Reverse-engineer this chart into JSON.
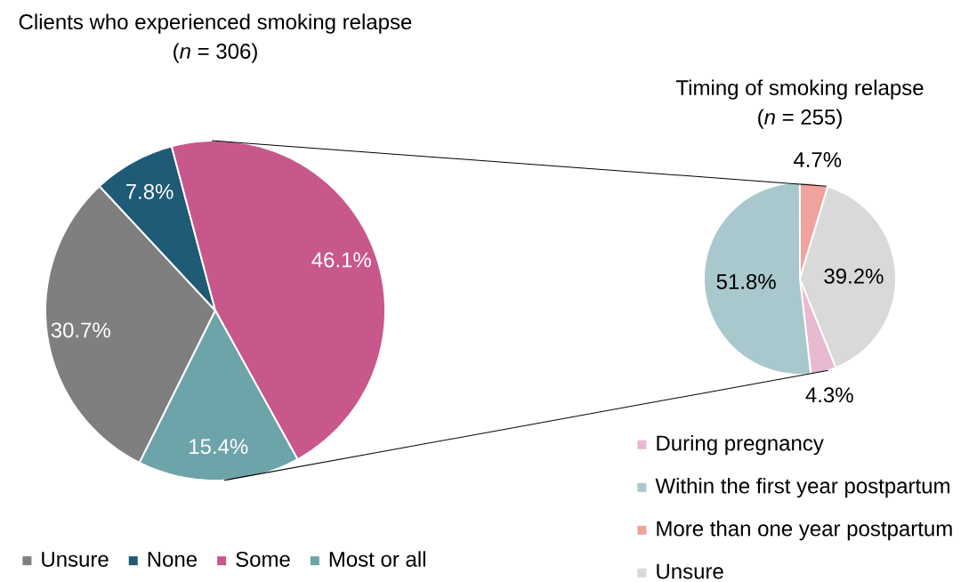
{
  "chart_data": [
    {
      "type": "pie",
      "title": "Clients who experienced smoking relapse",
      "subtitle": "(*n* = 306)",
      "categories": [
        "Unsure",
        "None",
        "Some",
        "Most or all"
      ],
      "values": [
        30.7,
        7.8,
        46.1,
        15.4
      ],
      "colors": [
        "#7f7f7f",
        "#1f5a76",
        "#c8578c",
        "#6ca4a9"
      ],
      "value_labels": [
        "30.7%",
        "7.8%",
        "46.1%",
        "15.4%"
      ],
      "legend": "bottom"
    },
    {
      "type": "pie",
      "title": "Timing of smoking relapse",
      "subtitle": "(*n* = 255)",
      "categories": [
        "During pregnancy",
        "Within the first year postpartum",
        "More than one year postpartum",
        "Unsure"
      ],
      "values": [
        4.3,
        51.8,
        4.7,
        39.2
      ],
      "colors": [
        "#e8b9d0",
        "#a9c8cd",
        "#f0a29c",
        "#d9d9d9"
      ],
      "value_labels": [
        "4.3%",
        "51.8%",
        "4.7%",
        "39.2%"
      ],
      "legend": "bottom"
    }
  ]
}
